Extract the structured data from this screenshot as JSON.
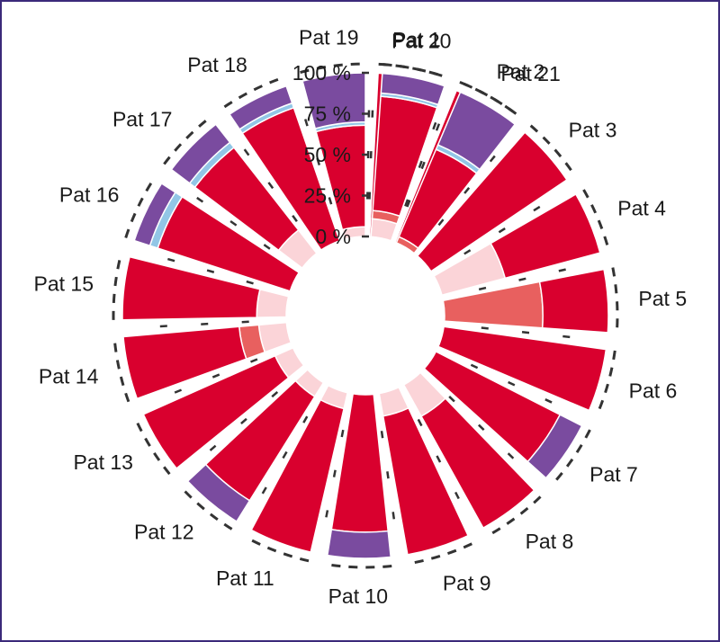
{
  "chart_data": {
    "type": "bar",
    "layout": "radial stacked bar",
    "title": "",
    "xlabel": "",
    "ylabel": "",
    "ylim": [
      0,
      100
    ],
    "y_tick_labels": [
      "0 %",
      "25 %",
      "50 %",
      "75 %",
      "100 %"
    ],
    "y_ticks": [
      0,
      25,
      50,
      75,
      100
    ],
    "categories": [
      "Pat 1",
      "Pat 2",
      "Pat 3",
      "Pat 4",
      "Pat 5",
      "Pat 6",
      "Pat 7",
      "Pat 8",
      "Pat 9",
      "Pat 10",
      "Pat 11",
      "Pat 12",
      "Pat 13",
      "Pat 14",
      "Pat 15",
      "Pat 16",
      "Pat 17",
      "Pat 18",
      "Pat 19",
      "Pat 20",
      "Pat 21"
    ],
    "series": [
      {
        "color": "#fbd4d8",
        "values": [
          0,
          0,
          0,
          40,
          0,
          0,
          0,
          22,
          14,
          0,
          10,
          10,
          12,
          17,
          18,
          0,
          18,
          0,
          6,
          11,
          0
        ]
      },
      {
        "color": "#e8605f",
        "values": [
          0,
          0,
          0,
          0,
          60,
          0,
          0,
          0,
          0,
          0,
          0,
          0,
          0,
          12,
          0,
          0,
          0,
          0,
          0,
          5,
          4
        ]
      },
      {
        "color": "#d9002e",
        "values": [
          100,
          100,
          100,
          60,
          40,
          100,
          85,
          78,
          86,
          84,
          90,
          75,
          88,
          71,
          82,
          85,
          64,
          86,
          62,
          70,
          58
        ]
      },
      {
        "color": "#92c6e6",
        "values": [
          0,
          0,
          0,
          0,
          0,
          0,
          0,
          0,
          0,
          0,
          0,
          0,
          0,
          0,
          0,
          5,
          4,
          3,
          2,
          2,
          3
        ]
      },
      {
        "color": "#7a4b9f",
        "values": [
          0,
          0,
          0,
          0,
          0,
          0,
          15,
          0,
          0,
          16,
          0,
          15,
          0,
          0,
          0,
          10,
          14,
          11,
          30,
          12,
          35
        ]
      }
    ],
    "legend": "none",
    "grid": false
  }
}
